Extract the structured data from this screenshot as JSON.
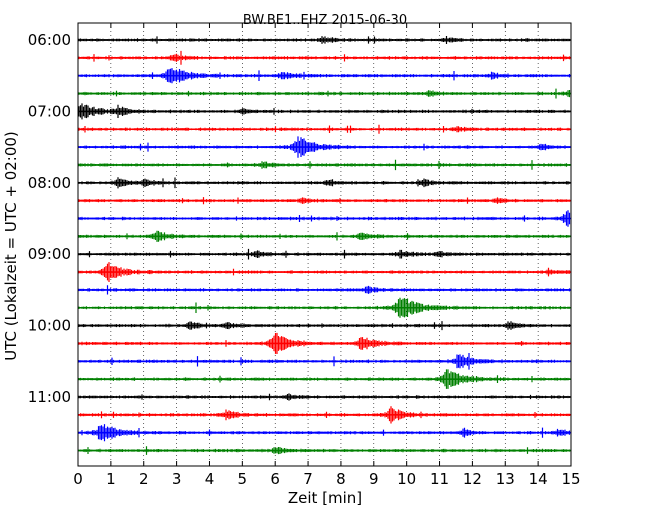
{
  "chart_data": {
    "type": "line",
    "title": "BW.BE1..EHZ 2015-06-30",
    "xlabel": "Zeit  [min]",
    "ylabel": "UTC (Lokalzeit = UTC + 02:00)",
    "xlim": [
      0,
      15
    ],
    "x_ticks": [
      "0",
      "1",
      "2",
      "3",
      "4",
      "5",
      "6",
      "7",
      "8",
      "9",
      "10",
      "11",
      "12",
      "13",
      "14",
      "15"
    ],
    "y_ticks": [
      {
        "label": "06:00",
        "trace": 0
      },
      {
        "label": "07:00",
        "trace": 4
      },
      {
        "label": "08:00",
        "trace": 8
      },
      {
        "label": "09:00",
        "trace": 12
      },
      {
        "label": "10:00",
        "trace": 16
      },
      {
        "label": "11:00",
        "trace": 20
      }
    ],
    "colors": [
      "#000000",
      "#ff0000",
      "#0000ff",
      "#008000"
    ],
    "grid": "vertical-dotted",
    "traces": [
      {
        "start": "06:00",
        "color": "#000000",
        "events": [
          [
            7.5,
            0.3
          ],
          [
            11.2,
            0.25
          ]
        ]
      },
      {
        "start": "06:15",
        "color": "#ff0000",
        "events": [
          [
            2.9,
            0.35
          ]
        ]
      },
      {
        "start": "06:30",
        "color": "#0000ff",
        "events": [
          [
            2.8,
            1.0
          ],
          [
            6.2,
            0.35
          ],
          [
            12.6,
            0.3
          ]
        ]
      },
      {
        "start": "06:45",
        "color": "#008000",
        "events": [
          [
            10.7,
            0.3
          ],
          [
            14.9,
            0.3
          ]
        ]
      },
      {
        "start": "07:00",
        "color": "#000000",
        "events": [
          [
            0.1,
            0.8
          ],
          [
            1.2,
            0.45
          ],
          [
            5.0,
            0.3
          ]
        ]
      },
      {
        "start": "07:15",
        "color": "#ff0000",
        "events": [
          [
            11.5,
            0.2
          ]
        ]
      },
      {
        "start": "07:30",
        "color": "#0000ff",
        "events": [
          [
            6.7,
            1.0
          ],
          [
            14.1,
            0.3
          ]
        ]
      },
      {
        "start": "07:45",
        "color": "#008000",
        "events": [
          [
            5.6,
            0.3
          ]
        ]
      },
      {
        "start": "08:00",
        "color": "#000000",
        "events": [
          [
            1.2,
            0.4
          ],
          [
            2.0,
            0.3
          ],
          [
            7.6,
            0.3
          ],
          [
            10.5,
            0.3
          ]
        ]
      },
      {
        "start": "08:15",
        "color": "#ff0000",
        "events": [
          [
            6.8,
            0.25
          ],
          [
            12.7,
            0.25
          ]
        ]
      },
      {
        "start": "08:30",
        "color": "#0000ff",
        "events": [
          [
            14.9,
            0.95
          ]
        ]
      },
      {
        "start": "08:45",
        "color": "#008000",
        "events": [
          [
            2.4,
            0.5
          ],
          [
            8.6,
            0.35
          ]
        ]
      },
      {
        "start": "09:00",
        "color": "#000000",
        "events": [
          [
            5.4,
            0.3
          ],
          [
            9.8,
            0.35
          ],
          [
            11.0,
            0.25
          ]
        ]
      },
      {
        "start": "09:15",
        "color": "#ff0000",
        "events": [
          [
            0.9,
            0.9
          ],
          [
            14.3,
            0.3
          ]
        ]
      },
      {
        "start": "09:30",
        "color": "#0000ff",
        "events": [
          [
            8.8,
            0.3
          ]
        ]
      },
      {
        "start": "09:45",
        "color": "#008000",
        "events": [
          [
            9.8,
            1.2
          ]
        ]
      },
      {
        "start": "10:00",
        "color": "#000000",
        "events": [
          [
            3.4,
            0.35
          ],
          [
            4.5,
            0.3
          ],
          [
            13.1,
            0.35
          ]
        ]
      },
      {
        "start": "10:15",
        "color": "#ff0000",
        "events": [
          [
            6.0,
            1.0
          ],
          [
            8.6,
            0.7
          ]
        ]
      },
      {
        "start": "10:30",
        "color": "#0000ff",
        "events": [
          [
            11.6,
            0.7
          ]
        ]
      },
      {
        "start": "10:45",
        "color": "#008000",
        "events": [
          [
            11.2,
            1.0
          ]
        ]
      },
      {
        "start": "11:00",
        "color": "#000000",
        "events": [
          [
            6.4,
            0.25
          ]
        ]
      },
      {
        "start": "11:15",
        "color": "#ff0000",
        "events": [
          [
            4.5,
            0.45
          ],
          [
            9.5,
            0.7
          ]
        ]
      },
      {
        "start": "11:30",
        "color": "#0000ff",
        "events": [
          [
            0.7,
            1.0
          ],
          [
            11.7,
            0.3
          ],
          [
            14.6,
            0.3
          ]
        ]
      },
      {
        "start": "11:45",
        "color": "#008000",
        "events": [
          [
            6.0,
            0.35
          ]
        ]
      }
    ]
  }
}
